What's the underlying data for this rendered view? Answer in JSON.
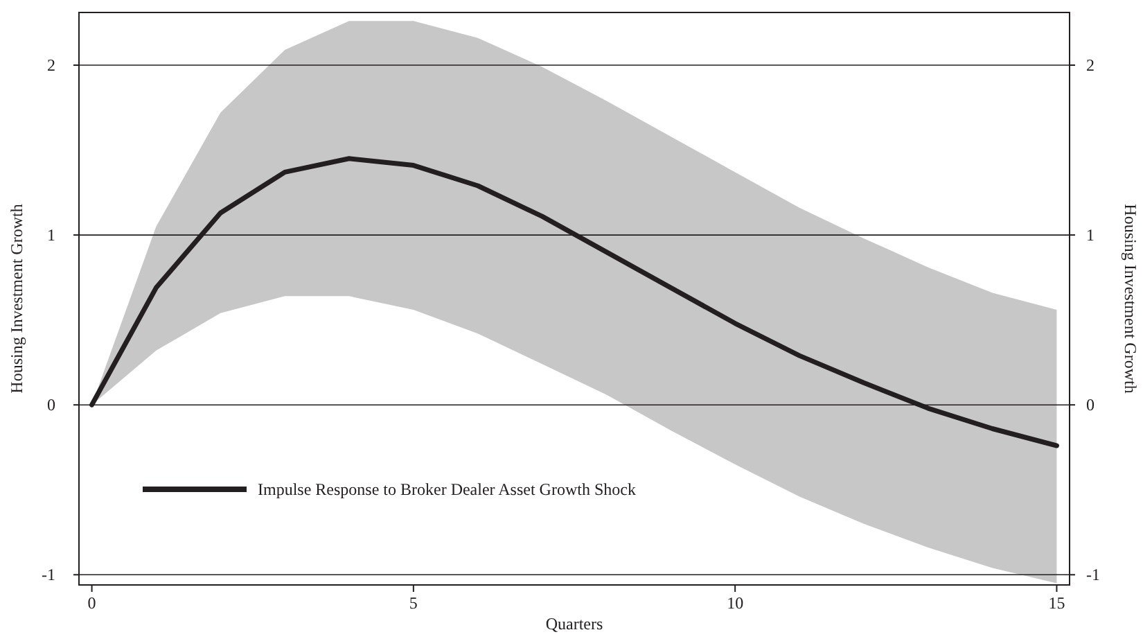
{
  "chart_data": {
    "type": "line",
    "xlabel": "Quarters",
    "ylabel": "Housing Investment Growth",
    "y2label": "Housing Investment Growth",
    "x": [
      0,
      1,
      2,
      3,
      4,
      5,
      6,
      7,
      8,
      9,
      10,
      11,
      12,
      13,
      14,
      15
    ],
    "series": [
      {
        "name": "Impulse Response to Broker Dealer Asset Growth Shock",
        "color": "#231f20",
        "values": [
          0,
          0.69,
          1.13,
          1.37,
          1.45,
          1.41,
          1.29,
          1.11,
          0.9,
          0.69,
          0.48,
          0.29,
          0.13,
          -0.02,
          -0.14,
          -0.24
        ],
        "lower": [
          0,
          0.32,
          0.54,
          0.64,
          0.64,
          0.56,
          0.42,
          0.24,
          0.06,
          -0.15,
          -0.35,
          -0.54,
          -0.7,
          -0.84,
          -0.96,
          -1.05
        ],
        "upper": [
          0,
          1.05,
          1.72,
          2.09,
          2.26,
          2.26,
          2.16,
          1.99,
          1.79,
          1.58,
          1.37,
          1.16,
          0.98,
          0.81,
          0.66,
          0.56
        ]
      }
    ],
    "xlim": [
      -0.2,
      15.2
    ],
    "xticks": [
      0,
      5,
      10,
      15
    ],
    "ylim": [
      -1.06,
      2.31
    ],
    "yticks": [
      -1,
      0,
      1,
      2
    ],
    "y2lim": [
      -1.06,
      2.31
    ],
    "y2ticks": [
      -1,
      0,
      1,
      2
    ],
    "grid": "y",
    "legend": "bottom left",
    "marker": "none",
    "line_style": "solid"
  }
}
